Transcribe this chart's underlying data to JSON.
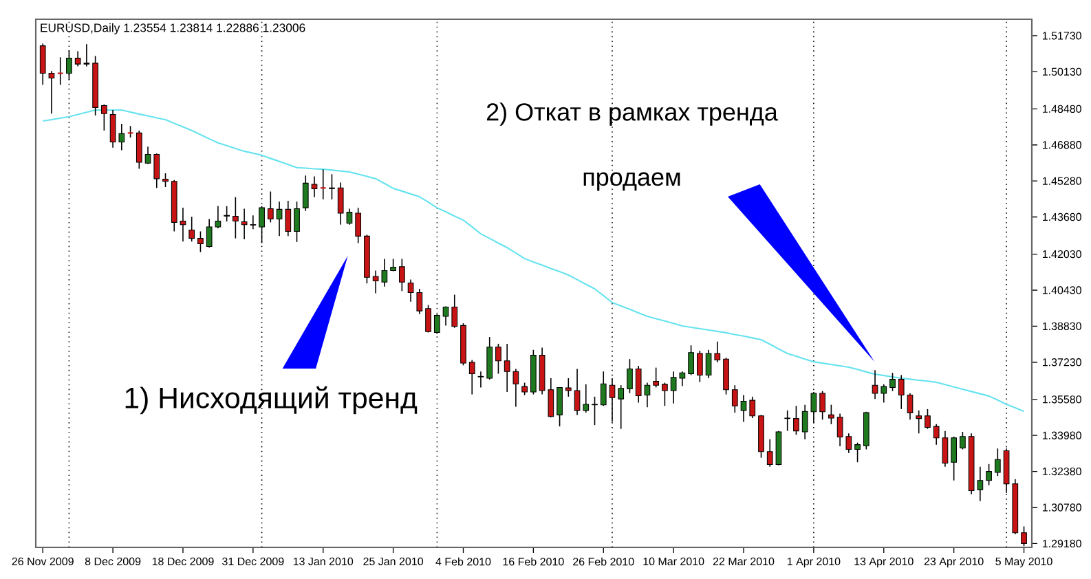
{
  "chart_data": {
    "type": "candlestick",
    "title": "EURUSD,Daily  1.23554 1.23814 1.22886 1.23006",
    "annotations": [
      "1) Нисходящий тренд",
      "2) Откат в рамках тренда",
      "продаем"
    ],
    "categories": [
      "26 Nov 2009",
      null,
      null,
      null,
      null,
      null,
      null,
      null,
      "8 Dec 2009",
      null,
      null,
      null,
      null,
      null,
      null,
      null,
      "18 Dec 2009",
      null,
      null,
      null,
      null,
      null,
      null,
      null,
      "31 Dec 2009",
      null,
      null,
      null,
      null,
      null,
      null,
      null,
      "13 Jan 2010",
      null,
      null,
      null,
      null,
      null,
      null,
      null,
      "25 Jan 2010",
      null,
      null,
      null,
      null,
      null,
      null,
      null,
      "4 Feb 2010",
      null,
      null,
      null,
      null,
      null,
      null,
      null,
      "16 Feb 2010",
      null,
      null,
      null,
      null,
      null,
      null,
      null,
      "26 Feb 2010",
      null,
      null,
      null,
      null,
      null,
      null,
      null,
      "10 Mar 2010",
      null,
      null,
      null,
      null,
      null,
      null,
      null,
      "22 Mar 2010",
      null,
      null,
      null,
      null,
      null,
      null,
      null,
      "1 Apr 2010",
      null,
      null,
      null,
      null,
      null,
      null,
      null,
      "13 Apr 2010",
      null,
      null,
      null,
      null,
      null,
      null,
      null,
      "23 Apr 2010",
      null,
      null,
      null,
      null,
      null,
      null,
      null,
      "5 May 2010"
    ],
    "ylim": [
      1.2901,
      1.5246
    ],
    "yticks": [
      {
        "value": 1.2918,
        "label": "1.29180"
      },
      {
        "value": 1.3078,
        "label": "1.30780"
      },
      {
        "value": 1.3238,
        "label": "1.32380"
      },
      {
        "value": 1.3398,
        "label": "1.33980"
      },
      {
        "value": 1.3558,
        "label": "1.35580"
      },
      {
        "value": 1.3723,
        "label": "1.37230"
      },
      {
        "value": 1.3883,
        "label": "1.38830"
      },
      {
        "value": 1.4043,
        "label": "1.40430"
      },
      {
        "value": 1.4203,
        "label": "1.42030"
      },
      {
        "value": 1.4368,
        "label": "1.43680"
      },
      {
        "value": 1.4528,
        "label": "1.45280"
      },
      {
        "value": 1.4688,
        "label": "1.46880"
      },
      {
        "value": 1.4848,
        "label": "1.48480"
      },
      {
        "value": 1.5013,
        "label": "1.50130"
      },
      {
        "value": 1.5173,
        "label": "1.51730"
      }
    ],
    "grid": "x",
    "series": [
      {
        "type": "line",
        "color": "#66e3ef",
        "line_style": "solid",
        "values": [
          1.4794,
          1.48,
          1.4807,
          1.4813,
          1.4823,
          1.4833,
          1.4843,
          1.4843,
          1.4843,
          1.4843,
          1.4834,
          1.4825,
          1.4817,
          1.4808,
          1.48,
          1.4784,
          1.4768,
          1.4752,
          1.4734,
          1.4715,
          1.4697,
          1.4685,
          1.4672,
          1.466,
          1.4651,
          1.4642,
          1.4628,
          1.4615,
          1.4601,
          1.4587,
          1.4585,
          1.4582,
          1.458,
          1.4576,
          1.4572,
          1.4568,
          1.4558,
          1.4548,
          1.4538,
          1.4517,
          1.4495,
          1.4483,
          1.447,
          1.4458,
          1.4434,
          1.4409,
          1.4391,
          1.4372,
          1.4354,
          1.4324,
          1.4293,
          1.4273,
          1.4252,
          1.4232,
          1.4208,
          1.4183,
          1.4168,
          1.4154,
          1.4139,
          1.4125,
          1.411,
          1.409,
          1.4069,
          1.4049,
          1.4019,
          1.3988,
          1.3973,
          1.3958,
          1.3942,
          1.3927,
          1.3916,
          1.3906,
          1.3895,
          1.3884,
          1.3878,
          1.3872,
          1.3866,
          1.386,
          1.3854,
          1.3846,
          1.3839,
          1.3831,
          1.3823,
          1.3803,
          1.3782,
          1.3762,
          1.375,
          1.3737,
          1.3725,
          1.3719,
          1.3713,
          1.3707,
          1.3701,
          1.3691,
          1.368,
          1.367,
          1.3664,
          1.3658,
          1.3652,
          1.3648,
          1.3643,
          1.3639,
          1.3634,
          1.3624,
          1.3613,
          1.3603,
          1.3593,
          1.3583,
          1.3573,
          1.3555,
          1.3536,
          1.3521,
          1.3505
        ]
      },
      {
        "colors": [
          "#c81414",
          "#c81414",
          "#c81414",
          "#1f7a1f",
          "#c81414",
          "#1f7a1f",
          "#c81414",
          "#c81414",
          "#c81414",
          "#1f7a1f",
          "#c81414",
          "#c81414",
          "#1f7a1f",
          "#c81414",
          "#c81414",
          "#c81414",
          "#c81414",
          "#c81414",
          "#c81414",
          "#1f7a1f",
          "#1f7a1f",
          "#1f7a1f",
          "#c81414",
          "#c81414",
          "#c81414",
          "#1f7a1f",
          "#c81414",
          "#1f7a1f",
          "#c81414",
          "#1f7a1f",
          "#1f7a1f",
          "#c81414",
          "#c81414",
          "#c81414",
          "#c81414",
          "#1f7a1f",
          "#c81414",
          "#c81414",
          "#c81414",
          "#1f7a1f",
          "#1f7a1f",
          "#c81414",
          "#c81414",
          "#c81414",
          "#c81414",
          "#1f7a1f",
          "#1f7a1f",
          "#c81414",
          "#c81414",
          "#c81414",
          "#c81414",
          "#1f7a1f",
          "#c81414",
          "#c81414",
          "#c81414",
          "#c81414",
          "#1f7a1f",
          "#c81414",
          "#c81414",
          "#1f7a1f",
          "#c81414",
          "#c81414",
          "#1f7a1f",
          "#c81414",
          "#1f7a1f",
          "#c81414",
          "#1f7a1f",
          "#1f7a1f",
          "#c81414",
          "#1f7a1f",
          "#c81414",
          "#c81414",
          "#1f7a1f",
          "#1f7a1f",
          "#1f7a1f",
          "#c81414",
          "#1f7a1f",
          "#c81414",
          "#c81414",
          "#c81414",
          "#1f7a1f",
          "#c81414",
          "#c81414",
          "#c81414",
          "#1f7a1f",
          "#1f7a1f",
          "#c81414",
          "#1f7a1f",
          "#1f7a1f",
          "#c81414",
          "#c81414",
          "#c81414",
          "#c81414",
          "#1f7a1f",
          "#1f7a1f",
          "#c81414",
          "#1f7a1f",
          "#1f7a1f",
          "#c81414",
          "#c81414",
          "#c81414",
          "#c81414",
          "#c81414",
          "#c81414",
          "#1f7a1f",
          "#1f7a1f",
          "#c81414",
          "#1f7a1f",
          "#1f7a1f",
          "#1f7a1f",
          "#c81414",
          "#c81414",
          "#c81414"
        ],
        "ohlc": [
          [
            1.5128,
            1.5138,
            1.4955,
            1.5006
          ],
          [
            1.5006,
            1.5016,
            1.4827,
            1.4985
          ],
          [
            1.5006,
            1.5077,
            1.4955,
            1.5006
          ],
          [
            1.5006,
            1.5108,
            1.4976,
            1.5073
          ],
          [
            1.5073,
            1.5104,
            1.5037,
            1.5047
          ],
          [
            1.5047,
            1.5135,
            1.5037,
            1.5051
          ],
          [
            1.5051,
            1.5083,
            1.4819,
            1.4854
          ],
          [
            1.4863,
            1.4868,
            1.4752,
            1.4827
          ],
          [
            1.4823,
            1.4843,
            1.4676,
            1.4701
          ],
          [
            1.4701,
            1.4782,
            1.4664,
            1.4738
          ],
          [
            1.4741,
            1.4772,
            1.4721,
            1.4741
          ],
          [
            1.4741,
            1.4752,
            1.4582,
            1.4611
          ],
          [
            1.4607,
            1.468,
            1.4603,
            1.4646
          ],
          [
            1.4646,
            1.465,
            1.4497,
            1.4538
          ],
          [
            1.4536,
            1.4562,
            1.4501,
            1.4526
          ],
          [
            1.4526,
            1.4532,
            1.4304,
            1.4344
          ],
          [
            1.435,
            1.4409,
            1.4259,
            1.4334
          ],
          [
            1.431,
            1.4369,
            1.4259,
            1.4273
          ],
          [
            1.4273,
            1.4304,
            1.4212,
            1.4249
          ],
          [
            1.4237,
            1.4359,
            1.4232,
            1.4324
          ],
          [
            1.4324,
            1.4416,
            1.4318,
            1.435
          ],
          [
            1.4372,
            1.4416,
            1.4348,
            1.4375
          ],
          [
            1.4371,
            1.4456,
            1.4273,
            1.435
          ],
          [
            1.4347,
            1.4405,
            1.4269,
            1.4334
          ],
          [
            1.4334,
            1.4375,
            1.4314,
            1.4332
          ],
          [
            1.4324,
            1.4416,
            1.4252,
            1.4409
          ],
          [
            1.4405,
            1.4481,
            1.4344,
            1.4359
          ],
          [
            1.4359,
            1.4436,
            1.4283,
            1.4402
          ],
          [
            1.4402,
            1.444,
            1.4283,
            1.4304
          ],
          [
            1.4304,
            1.4436,
            1.4257,
            1.4405
          ],
          [
            1.4409,
            1.4552,
            1.4395,
            1.4518
          ],
          [
            1.4513,
            1.4548,
            1.4456,
            1.4493
          ],
          [
            1.4497,
            1.4579,
            1.4446,
            1.4497
          ],
          [
            1.4497,
            1.4558,
            1.4446,
            1.4494
          ],
          [
            1.4497,
            1.4521,
            1.4334,
            1.4385
          ],
          [
            1.434,
            1.4405,
            1.4334,
            1.4389
          ],
          [
            1.4385,
            1.4409,
            1.4252,
            1.4283
          ],
          [
            1.4283,
            1.4289,
            1.4073,
            1.41
          ],
          [
            1.4104,
            1.413,
            1.4029,
            1.4084
          ],
          [
            1.4079,
            1.4182,
            1.4059,
            1.413
          ],
          [
            1.413,
            1.4182,
            1.4127,
            1.4145
          ],
          [
            1.4147,
            1.4182,
            1.4039,
            1.4079
          ],
          [
            1.4075,
            1.409,
            1.3992,
            1.4032
          ],
          [
            1.4032,
            1.4049,
            1.3937,
            1.3951
          ],
          [
            1.3961,
            1.3977,
            1.3855,
            1.3859
          ],
          [
            1.3855,
            1.3937,
            1.3849,
            1.3931
          ],
          [
            1.3927,
            1.3971,
            1.3886,
            1.3968
          ],
          [
            1.3968,
            1.4023,
            1.3876,
            1.3882
          ],
          [
            1.3886,
            1.3896,
            1.3709,
            1.3719
          ],
          [
            1.3723,
            1.3733,
            1.358,
            1.3672
          ],
          [
            1.366,
            1.3682,
            1.3611,
            1.3658
          ],
          [
            1.3652,
            1.3835,
            1.3646,
            1.379
          ],
          [
            1.379,
            1.3805,
            1.3672,
            1.3729
          ],
          [
            1.3729,
            1.3805,
            1.3591,
            1.3682
          ],
          [
            1.3682,
            1.3693,
            1.3525,
            1.3627
          ],
          [
            1.3615,
            1.3632,
            1.3577,
            1.3591
          ],
          [
            1.3591,
            1.3778,
            1.358,
            1.3754
          ],
          [
            1.3754,
            1.3788,
            1.358,
            1.3597
          ],
          [
            1.3601,
            1.3652,
            1.3479,
            1.3482
          ],
          [
            1.3489,
            1.3611,
            1.3438,
            1.3611
          ],
          [
            1.3609,
            1.3652,
            1.357,
            1.3597
          ],
          [
            1.3597,
            1.3693,
            1.3489,
            1.3509
          ],
          [
            1.3509,
            1.3625,
            1.3499,
            1.3536
          ],
          [
            1.3536,
            1.357,
            1.3444,
            1.3534
          ],
          [
            1.3534,
            1.3682,
            1.3529,
            1.3627
          ],
          [
            1.3621,
            1.3652,
            1.3458,
            1.3566
          ],
          [
            1.356,
            1.3621,
            1.3427,
            1.3607
          ],
          [
            1.3605,
            1.3737,
            1.3586,
            1.3693
          ],
          [
            1.3693,
            1.3707,
            1.3544,
            1.3574
          ],
          [
            1.3577,
            1.3632,
            1.3523,
            1.3621
          ],
          [
            1.3638,
            1.3699,
            1.3611,
            1.3621
          ],
          [
            1.3625,
            1.3632,
            1.3529,
            1.3597
          ],
          [
            1.3597,
            1.3682,
            1.354,
            1.3656
          ],
          [
            1.3652,
            1.3682,
            1.3617,
            1.3676
          ],
          [
            1.3672,
            1.3798,
            1.3666,
            1.3766
          ],
          [
            1.3762,
            1.3774,
            1.3635,
            1.3666
          ],
          [
            1.3666,
            1.3778,
            1.3652,
            1.3762
          ],
          [
            1.3762,
            1.3815,
            1.3723,
            1.3733
          ],
          [
            1.3737,
            1.3743,
            1.358,
            1.3601
          ],
          [
            1.3601,
            1.3621,
            1.3499,
            1.3529
          ],
          [
            1.3509,
            1.3577,
            1.3458,
            1.355
          ],
          [
            1.3554,
            1.357,
            1.3475,
            1.3485
          ],
          [
            1.3485,
            1.3489,
            1.3299,
            1.3326
          ],
          [
            1.3326,
            1.3381,
            1.3259,
            1.3269
          ],
          [
            1.3269,
            1.3418,
            1.3265,
            1.3414
          ],
          [
            1.3473,
            1.3509,
            1.3418,
            1.3475
          ],
          [
            1.3473,
            1.3529,
            1.3401,
            1.3418
          ],
          [
            1.3414,
            1.3534,
            1.3381,
            1.3505
          ],
          [
            1.3503,
            1.3591,
            1.3454,
            1.3585
          ],
          [
            1.3585,
            1.3595,
            1.3468,
            1.3503
          ],
          [
            1.3489,
            1.3534,
            1.3448,
            1.3475
          ],
          [
            1.3479,
            1.3495,
            1.335,
            1.3391
          ],
          [
            1.3393,
            1.3407,
            1.332,
            1.3336
          ],
          [
            1.3336,
            1.3366,
            1.3279,
            1.3357
          ],
          [
            1.3352,
            1.3503,
            1.3336,
            1.3499
          ],
          [
            1.3621,
            1.3688,
            1.356,
            1.3585
          ],
          [
            1.3585,
            1.3625,
            1.3544,
            1.3615
          ],
          [
            1.3611,
            1.3676,
            1.3595,
            1.3647
          ],
          [
            1.3647,
            1.3666,
            1.3515,
            1.3577
          ],
          [
            1.3577,
            1.3585,
            1.3468,
            1.3499
          ],
          [
            1.3485,
            1.3509,
            1.3407,
            1.3473
          ],
          [
            1.3485,
            1.3515,
            1.3427,
            1.3434
          ],
          [
            1.3438,
            1.3448,
            1.3357,
            1.3387
          ],
          [
            1.3387,
            1.3418,
            1.3259,
            1.3275
          ],
          [
            1.3279,
            1.3393,
            1.3198,
            1.3387
          ],
          [
            1.3342,
            1.3414,
            1.3336,
            1.3393
          ],
          [
            1.3393,
            1.3407,
            1.3137,
            1.3153
          ],
          [
            1.3157,
            1.3259,
            1.3106,
            1.3198
          ],
          [
            1.3198,
            1.3271,
            1.3177,
            1.3238
          ],
          [
            1.3234,
            1.334,
            1.3218,
            1.3291
          ],
          [
            1.333,
            1.334,
            1.3143,
            1.3183
          ],
          [
            1.3183,
            1.3204,
            1.2959,
            1.2966
          ],
          [
            1.2966,
            1.2994,
            1.2906,
            1.2918
          ]
        ]
      }
    ]
  }
}
